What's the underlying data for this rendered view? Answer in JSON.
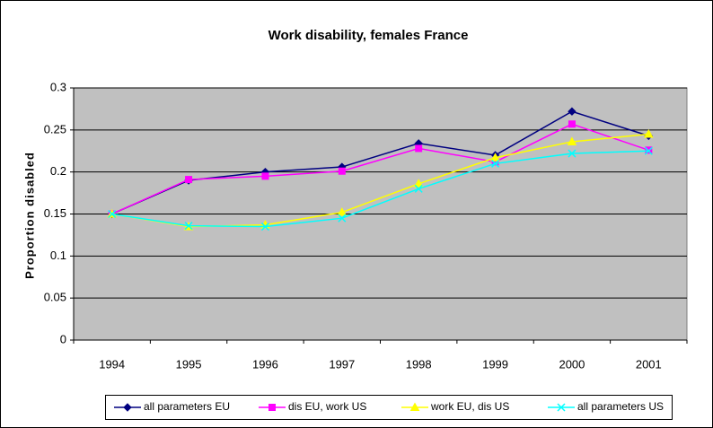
{
  "chart_data": {
    "type": "line",
    "title": "Work disability, females France",
    "y_label": "Proportion disabled",
    "categories": [
      "1994",
      "1995",
      "1996",
      "1997",
      "1998",
      "1999",
      "2000",
      "2001"
    ],
    "series": [
      {
        "name": "all parameters EU",
        "color": "#000080",
        "marker": "diamond",
        "values": [
          0.15,
          0.19,
          0.2,
          0.206,
          0.234,
          0.22,
          0.272,
          0.243
        ]
      },
      {
        "name": "dis EU, work US",
        "color": "#ff00ff",
        "marker": "square",
        "values": [
          0.15,
          0.191,
          0.195,
          0.201,
          0.228,
          0.212,
          0.257,
          0.226
        ]
      },
      {
        "name": "work EU, dis US",
        "color": "#ffff00",
        "marker": "triangle",
        "values": [
          0.15,
          0.135,
          0.137,
          0.152,
          0.186,
          0.217,
          0.236,
          0.245
        ]
      },
      {
        "name": "all parameters US",
        "color": "#00ffff",
        "marker": "x",
        "values": [
          0.15,
          0.136,
          0.135,
          0.145,
          0.18,
          0.21,
          0.222,
          0.225
        ]
      }
    ],
    "ylim": [
      0,
      0.3
    ],
    "yticks": [
      0,
      0.05,
      0.1,
      0.15,
      0.2,
      0.25,
      0.3
    ],
    "grid": true,
    "legend": "bottom",
    "plot_background": "#c0c0c0"
  }
}
